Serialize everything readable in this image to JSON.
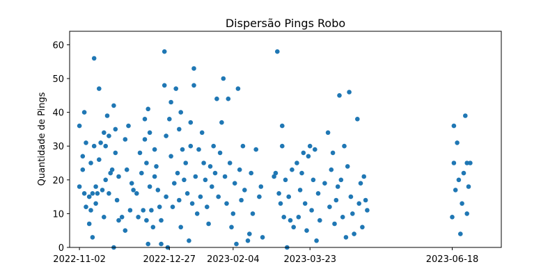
{
  "chart_data": {
    "type": "scatter",
    "title": "Dispersão Pings Robo",
    "xlabel": "",
    "ylabel": "Quantidade de Pings",
    "x_type": "date",
    "xlim": [
      "2022-10-27",
      "2023-07-18"
    ],
    "ylim": [
      0,
      64
    ],
    "x_ticks": [
      "2022-11-02",
      "2022-12-27",
      "2023-02-04",
      "2023-03-23",
      "2023-06-18"
    ],
    "y_ticks": [
      0,
      10,
      20,
      30,
      40,
      50,
      60
    ],
    "x_tick_labels": [
      "2022-11-02",
      "2022-12-27",
      "2023-02-04",
      "2023-03-23",
      "2023-06-18"
    ],
    "y_tick_labels": [
      "0",
      "10",
      "20",
      "30",
      "40",
      "50",
      "60"
    ],
    "marker_color": "#1f77b4",
    "grid": false,
    "legend": "none",
    "points": [
      [
        "2022-11-02",
        36
      ],
      [
        "2022-11-02",
        18
      ],
      [
        "2022-11-04",
        23
      ],
      [
        "2022-11-04",
        27
      ],
      [
        "2022-11-05",
        40
      ],
      [
        "2022-11-05",
        16
      ],
      [
        "2022-11-06",
        31
      ],
      [
        "2022-11-06",
        12
      ],
      [
        "2022-11-08",
        15
      ],
      [
        "2022-11-08",
        7
      ],
      [
        "2022-11-09",
        11
      ],
      [
        "2022-11-09",
        25
      ],
      [
        "2022-11-10",
        3
      ],
      [
        "2022-11-10",
        16
      ],
      [
        "2022-11-11",
        30
      ],
      [
        "2022-11-11",
        56
      ],
      [
        "2022-11-12",
        18
      ],
      [
        "2022-11-12",
        13
      ],
      [
        "2022-11-13",
        16
      ],
      [
        "2022-11-14",
        47
      ],
      [
        "2022-11-14",
        26
      ],
      [
        "2022-11-15",
        31
      ],
      [
        "2022-11-16",
        17
      ],
      [
        "2022-11-17",
        34
      ],
      [
        "2022-11-17",
        9
      ],
      [
        "2022-11-18",
        30
      ],
      [
        "2022-11-18",
        20
      ],
      [
        "2022-11-19",
        39
      ],
      [
        "2022-11-20",
        33
      ],
      [
        "2022-11-20",
        16
      ],
      [
        "2022-11-21",
        22
      ],
      [
        "2022-11-22",
        23
      ],
      [
        "2022-11-23",
        42
      ],
      [
        "2022-11-23",
        0
      ],
      [
        "2022-11-24",
        35
      ],
      [
        "2022-11-24",
        28
      ],
      [
        "2022-11-25",
        14
      ],
      [
        "2022-11-26",
        21
      ],
      [
        "2022-11-26",
        8
      ],
      [
        "2022-11-28",
        9
      ],
      [
        "2022-11-30",
        32
      ],
      [
        "2022-11-30",
        5
      ],
      [
        "2022-12-01",
        23
      ],
      [
        "2022-12-02",
        36
      ],
      [
        "2022-12-03",
        11
      ],
      [
        "2022-12-04",
        19
      ],
      [
        "2022-12-05",
        17
      ],
      [
        "2022-12-07",
        16
      ],
      [
        "2022-12-08",
        9
      ],
      [
        "2022-12-09",
        28
      ],
      [
        "2022-12-10",
        22
      ],
      [
        "2022-12-11",
        11
      ],
      [
        "2022-12-12",
        32
      ],
      [
        "2022-12-12",
        38
      ],
      [
        "2022-12-13",
        25
      ],
      [
        "2022-12-13",
        8
      ],
      [
        "2022-12-14",
        41
      ],
      [
        "2022-12-14",
        1
      ],
      [
        "2022-12-15",
        34
      ],
      [
        "2022-12-15",
        18
      ],
      [
        "2022-12-16",
        11
      ],
      [
        "2022-12-17",
        6
      ],
      [
        "2022-12-18",
        29
      ],
      [
        "2022-12-18",
        21
      ],
      [
        "2022-12-19",
        24
      ],
      [
        "2022-12-20",
        17
      ],
      [
        "2022-12-21",
        12
      ],
      [
        "2022-12-22",
        8
      ],
      [
        "2022-12-22",
        1
      ],
      [
        "2022-12-24",
        58
      ],
      [
        "2022-12-24",
        48
      ],
      [
        "2022-12-25",
        33
      ],
      [
        "2022-12-25",
        15
      ],
      [
        "2022-12-26",
        0
      ],
      [
        "2022-12-27",
        38
      ],
      [
        "2022-12-28",
        43
      ],
      [
        "2022-12-28",
        27
      ],
      [
        "2022-12-29",
        12
      ],
      [
        "2022-12-30",
        19
      ],
      [
        "2022-12-31",
        47
      ],
      [
        "2023-01-01",
        22
      ],
      [
        "2023-01-02",
        35
      ],
      [
        "2023-01-02",
        14
      ],
      [
        "2023-01-03",
        6
      ],
      [
        "2023-01-03",
        40
      ],
      [
        "2023-01-04",
        29
      ],
      [
        "2023-01-05",
        20
      ],
      [
        "2023-01-06",
        25
      ],
      [
        "2023-01-07",
        16
      ],
      [
        "2023-01-08",
        2
      ],
      [
        "2023-01-09",
        37
      ],
      [
        "2023-01-09",
        30
      ],
      [
        "2023-01-10",
        13
      ],
      [
        "2023-01-11",
        53
      ],
      [
        "2023-01-11",
        48
      ],
      [
        "2023-01-12",
        21
      ],
      [
        "2023-01-13",
        10
      ],
      [
        "2023-01-14",
        29
      ],
      [
        "2023-01-15",
        15
      ],
      [
        "2023-01-16",
        34
      ],
      [
        "2023-01-17",
        25
      ],
      [
        "2023-01-18",
        20
      ],
      [
        "2023-01-19",
        12
      ],
      [
        "2023-01-20",
        7
      ],
      [
        "2023-01-21",
        24
      ],
      [
        "2023-01-22",
        18
      ],
      [
        "2023-01-23",
        30
      ],
      [
        "2023-01-24",
        22
      ],
      [
        "2023-01-25",
        44
      ],
      [
        "2023-01-26",
        15
      ],
      [
        "2023-01-27",
        28
      ],
      [
        "2023-01-28",
        37
      ],
      [
        "2023-01-29",
        50
      ],
      [
        "2023-01-30",
        21
      ],
      [
        "2023-01-31",
        13
      ],
      [
        "2023-02-01",
        44
      ],
      [
        "2023-02-02",
        25
      ],
      [
        "2023-02-03",
        6
      ],
      [
        "2023-02-04",
        10
      ],
      [
        "2023-02-05",
        19
      ],
      [
        "2023-02-06",
        1
      ],
      [
        "2023-02-07",
        47
      ],
      [
        "2023-02-08",
        23
      ],
      [
        "2023-02-09",
        14
      ],
      [
        "2023-02-10",
        30
      ],
      [
        "2023-02-11",
        17
      ],
      [
        "2023-02-13",
        2
      ],
      [
        "2023-02-14",
        4
      ],
      [
        "2023-02-15",
        22
      ],
      [
        "2023-02-16",
        10
      ],
      [
        "2023-02-18",
        29
      ],
      [
        "2023-02-20",
        15
      ],
      [
        "2023-02-21",
        18
      ],
      [
        "2023-02-22",
        3
      ],
      [
        "2023-03-01",
        21
      ],
      [
        "2023-03-02",
        22
      ],
      [
        "2023-03-03",
        58
      ],
      [
        "2023-03-04",
        16
      ],
      [
        "2023-03-05",
        13
      ],
      [
        "2023-03-06",
        36
      ],
      [
        "2023-03-06",
        30
      ],
      [
        "2023-03-07",
        9
      ],
      [
        "2023-03-08",
        20
      ],
      [
        "2023-03-09",
        0
      ],
      [
        "2023-03-10",
        15
      ],
      [
        "2023-03-11",
        8
      ],
      [
        "2023-03-12",
        23
      ],
      [
        "2023-03-13",
        6
      ],
      [
        "2023-03-15",
        25
      ],
      [
        "2023-03-16",
        9
      ],
      [
        "2023-03-17",
        17
      ],
      [
        "2023-03-18",
        22
      ],
      [
        "2023-03-19",
        28
      ],
      [
        "2023-03-20",
        13
      ],
      [
        "2023-03-21",
        5
      ],
      [
        "2023-03-22",
        27
      ],
      [
        "2023-03-23",
        30
      ],
      [
        "2023-03-24",
        11
      ],
      [
        "2023-03-25",
        20
      ],
      [
        "2023-03-26",
        29
      ],
      [
        "2023-03-27",
        2
      ],
      [
        "2023-03-28",
        16
      ],
      [
        "2023-03-29",
        8
      ],
      [
        "2023-04-01",
        19
      ],
      [
        "2023-04-03",
        34
      ],
      [
        "2023-04-04",
        12
      ],
      [
        "2023-04-05",
        23
      ],
      [
        "2023-04-06",
        28
      ],
      [
        "2023-04-07",
        7
      ],
      [
        "2023-04-08",
        14
      ],
      [
        "2023-04-09",
        18
      ],
      [
        "2023-04-10",
        45
      ],
      [
        "2023-04-11",
        20
      ],
      [
        "2023-04-12",
        9
      ],
      [
        "2023-04-13",
        30
      ],
      [
        "2023-04-14",
        3
      ],
      [
        "2023-04-15",
        24
      ],
      [
        "2023-04-16",
        46
      ],
      [
        "2023-04-17",
        15
      ],
      [
        "2023-04-18",
        10
      ],
      [
        "2023-04-19",
        4
      ],
      [
        "2023-04-21",
        38
      ],
      [
        "2023-04-22",
        13
      ],
      [
        "2023-04-23",
        19
      ],
      [
        "2023-04-24",
        6
      ],
      [
        "2023-04-25",
        21
      ],
      [
        "2023-04-26",
        14
      ],
      [
        "2023-04-27",
        11
      ],
      [
        "2023-06-18",
        9
      ],
      [
        "2023-06-19",
        25
      ],
      [
        "2023-06-19",
        36
      ],
      [
        "2023-06-20",
        17
      ],
      [
        "2023-06-21",
        31
      ],
      [
        "2023-06-22",
        20
      ],
      [
        "2023-06-23",
        4
      ],
      [
        "2023-06-24",
        13
      ],
      [
        "2023-06-25",
        22
      ],
      [
        "2023-06-26",
        39
      ],
      [
        "2023-06-27",
        25
      ],
      [
        "2023-06-27",
        10
      ],
      [
        "2023-06-28",
        18
      ],
      [
        "2023-06-29",
        25
      ]
    ]
  }
}
